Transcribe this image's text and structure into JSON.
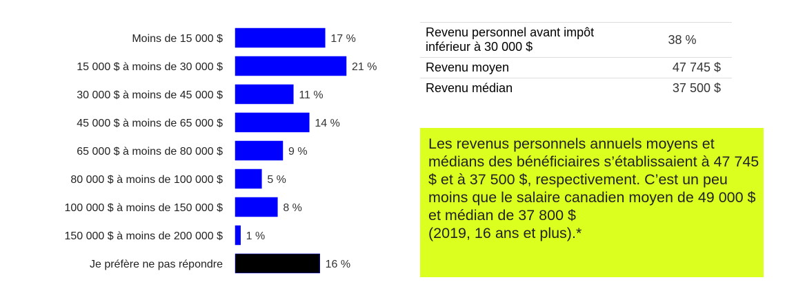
{
  "chart_data": {
    "type": "bar",
    "orientation": "horizontal",
    "categories": [
      "Moins de 15 000 $",
      "15 000 $ à moins de 30 000 $",
      "30 000 $ à moins de 45 000 $",
      "45 000 $ à moins de 65 000 $",
      "65 000 $ à moins de 80 000 $",
      "80 000 $ à moins de 100 000 $",
      "100 000 $ à moins de 150 000 $",
      "150 000 $ à moins de 200 000 $",
      "Je préfère ne pas répondre"
    ],
    "values": [
      17,
      21,
      11,
      14,
      9,
      5,
      8,
      1,
      16
    ],
    "labels": [
      "17 %",
      "21 %",
      "11 %",
      "14 %",
      "9 %",
      "5 %",
      "8 %",
      "1 %",
      "16 %"
    ],
    "colors": [
      "#0000ff",
      "#0000ff",
      "#0000ff",
      "#0000ff",
      "#0000ff",
      "#0000ff",
      "#0000ff",
      "#0000ff",
      "#000000"
    ],
    "xlim": [
      0,
      21
    ],
    "grid": false
  },
  "table": {
    "rows": [
      {
        "label": "Revenu personnel avant impôt inférieur à 30 000 $",
        "value": "38 %"
      },
      {
        "label": "Revenu moyen",
        "value": "47 745 $"
      },
      {
        "label": "Revenu médian",
        "value": "37 500 $"
      }
    ]
  },
  "callout": {
    "text": "Les revenus personnels annuels moyens et médians des bénéficiaires s’établissaient à 47 745 $ et à 37 500 $, respectivement. C’est un peu moins que le salaire canadien moyen de 49 000 $ et médian de 37 800 $",
    "note": "(2019, 16 ans et plus).*",
    "highlight_color": "#dbff1f"
  }
}
